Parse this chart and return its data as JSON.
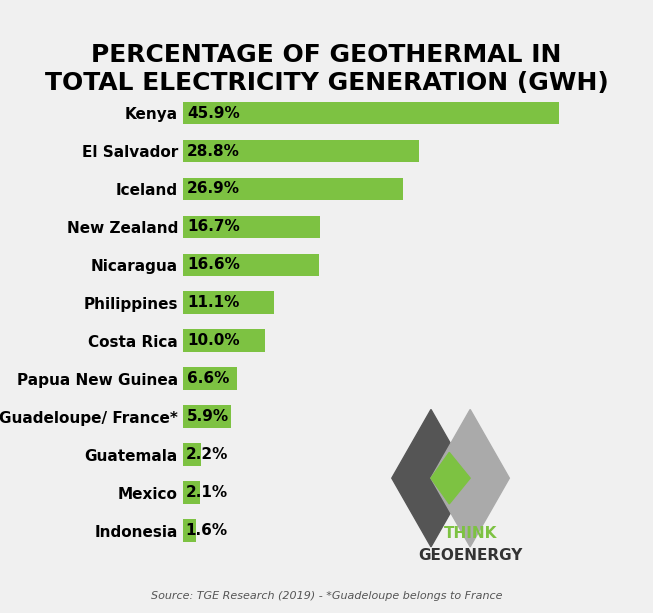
{
  "title": "PERCENTAGE OF GEOTHERMAL IN\nTOTAL ELECTRICITY GENERATION (GWH)",
  "categories": [
    "Kenya",
    "El Salvador",
    "Iceland",
    "New Zealand",
    "Nicaragua",
    "Philippines",
    "Costa Rica",
    "Papua New Guinea",
    "Guadeloupe/ France*",
    "Guatemala",
    "Mexico",
    "Indonesia"
  ],
  "values": [
    45.9,
    28.8,
    26.9,
    16.7,
    16.6,
    11.1,
    10.0,
    6.6,
    5.9,
    2.2,
    2.1,
    1.6
  ],
  "labels": [
    "45.9%",
    "28.8%",
    "26.9%",
    "16.7%",
    "16.6%",
    "11.1%",
    "10.0%",
    "6.6%",
    "5.9%",
    "2.2%",
    "2.1%",
    "1.6%"
  ],
  "bar_color": "#7DC242",
  "background_color": "#f0f0f0",
  "title_fontsize": 18,
  "label_fontsize": 11,
  "source_text": "Source: TGE Research (2019) - *Guadeloupe belongs to France",
  "xlim": [
    0,
    55
  ]
}
